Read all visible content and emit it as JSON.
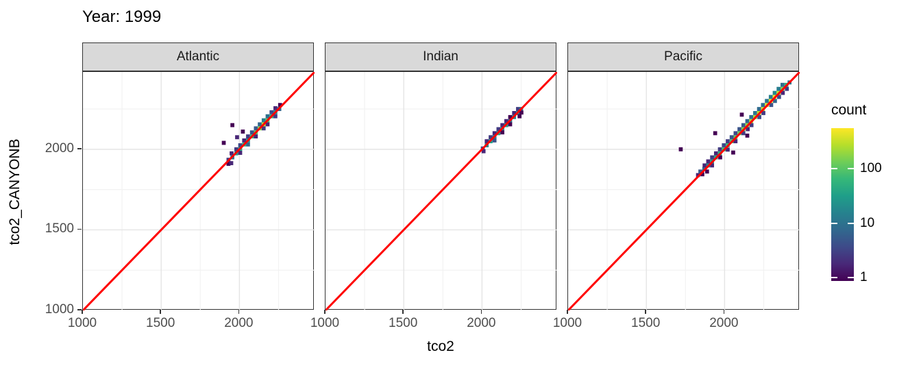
{
  "title": "Year: 1999",
  "x_axis": {
    "label": "tco2",
    "tick_labels": [
      "1000",
      "1500",
      "2000"
    ],
    "tick_values": [
      1000,
      1500,
      2000
    ],
    "minor_gridlines": [
      1250,
      1750,
      2250
    ],
    "major_gridlines": [
      1500,
      2000
    ],
    "domain": [
      1000,
      2480
    ]
  },
  "y_axis": {
    "label": "tco2_CANYONB",
    "tick_labels": [
      "1000",
      "1500",
      "2000"
    ],
    "tick_values": [
      1000,
      1500,
      2000
    ],
    "minor_gridlines": [
      1250,
      1750,
      2250
    ],
    "major_gridlines": [
      1500,
      2000
    ],
    "domain": [
      1000,
      2480
    ]
  },
  "legend": {
    "title": "count",
    "tick_labels": [
      "100",
      "10",
      "1"
    ],
    "tick_values": [
      100,
      10,
      1
    ],
    "scale": "log10",
    "range_min": 0.87,
    "range_max": 560
  },
  "colors": {
    "identity_line": "#ff0000",
    "strip_bg": "#d9d9d9",
    "panel_border": "#333333",
    "grid_major": "#e4e4e4",
    "grid_minor": "#f2f2f2",
    "tick_text": "#4d4d4d",
    "text": "#000000",
    "viridis": [
      "#440154",
      "#482878",
      "#3e4a89",
      "#31688e",
      "#26828e",
      "#1f9e89",
      "#35b779",
      "#6ece58",
      "#b5de2b",
      "#fde725"
    ]
  },
  "chart_data": {
    "type": "heatmap",
    "subtype": "faceted geom_bin2d (2D binned counts) with y=x reference line",
    "title": "Year: 1999",
    "xlabel": "tco2",
    "ylabel": "tco2_CANYONB",
    "axis_range": [
      1000,
      2480
    ],
    "bin_width": 25,
    "count_scale": "log10",
    "legend_title": "count",
    "identity_line": {
      "color": "#ff0000",
      "from": 1000,
      "to": 2480
    },
    "facets": [
      {
        "name": "Atlantic",
        "bins": [
          [
            1930,
            1935,
            3
          ],
          [
            1930,
            1910,
            1
          ],
          [
            1948,
            1914,
            2
          ],
          [
            1955,
            1950,
            12
          ],
          [
            1950,
            1975,
            2
          ],
          [
            1980,
            1975,
            30
          ],
          [
            1980,
            2000,
            3
          ],
          [
            2005,
            2000,
            45
          ],
          [
            2005,
            2025,
            4
          ],
          [
            2005,
            1978,
            2
          ],
          [
            2030,
            2030,
            60
          ],
          [
            2030,
            2055,
            2
          ],
          [
            2055,
            2055,
            25
          ],
          [
            2055,
            2080,
            3
          ],
          [
            2055,
            2030,
            8
          ],
          [
            2080,
            2080,
            70
          ],
          [
            2080,
            2105,
            5
          ],
          [
            2105,
            2105,
            110
          ],
          [
            2105,
            2130,
            6
          ],
          [
            2105,
            2080,
            2
          ],
          [
            2130,
            2130,
            180
          ],
          [
            2130,
            2155,
            8
          ],
          [
            2155,
            2155,
            320
          ],
          [
            2155,
            2180,
            15
          ],
          [
            2155,
            2130,
            3
          ],
          [
            2180,
            2180,
            120
          ],
          [
            2180,
            2205,
            10
          ],
          [
            2180,
            2155,
            2
          ],
          [
            2205,
            2205,
            60
          ],
          [
            2205,
            2230,
            4
          ],
          [
            2230,
            2230,
            25
          ],
          [
            2230,
            2255,
            2
          ],
          [
            2230,
            2205,
            3
          ],
          [
            2255,
            2250,
            8
          ],
          [
            2260,
            2275,
            1
          ],
          [
            1955,
            2150,
            1
          ],
          [
            1900,
            2040,
            1
          ],
          [
            2022,
            2110,
            1
          ],
          [
            1985,
            2075,
            2
          ]
        ]
      },
      {
        "name": "Indian",
        "bins": [
          [
            2005,
            2005,
            4
          ],
          [
            2010,
            1988,
            2
          ],
          [
            2030,
            2025,
            20
          ],
          [
            2030,
            2050,
            2
          ],
          [
            2055,
            2050,
            35
          ],
          [
            2055,
            2075,
            3
          ],
          [
            2080,
            2075,
            15
          ],
          [
            2080,
            2100,
            2
          ],
          [
            2080,
            2055,
            5
          ],
          [
            2105,
            2100,
            40
          ],
          [
            2105,
            2125,
            3
          ],
          [
            2130,
            2125,
            25
          ],
          [
            2130,
            2150,
            2
          ],
          [
            2130,
            2105,
            1
          ],
          [
            2155,
            2150,
            30
          ],
          [
            2155,
            2175,
            2
          ],
          [
            2180,
            2175,
            12
          ],
          [
            2180,
            2200,
            1
          ],
          [
            2180,
            2155,
            1
          ],
          [
            2205,
            2200,
            20
          ],
          [
            2205,
            2225,
            2
          ],
          [
            2230,
            2225,
            25
          ],
          [
            2230,
            2250,
            3
          ],
          [
            2250,
            2250,
            10
          ],
          [
            2252,
            2228,
            1
          ],
          [
            2240,
            2205,
            1
          ]
        ]
      },
      {
        "name": "Pacific",
        "bins": [
          [
            1830,
            1840,
            2
          ],
          [
            1845,
            1862,
            6
          ],
          [
            1858,
            1845,
            1
          ],
          [
            1870,
            1878,
            10
          ],
          [
            1872,
            1900,
            2
          ],
          [
            1888,
            1862,
            1
          ],
          [
            1895,
            1900,
            20
          ],
          [
            1895,
            1925,
            2
          ],
          [
            1920,
            1925,
            30
          ],
          [
            1920,
            1950,
            3
          ],
          [
            1920,
            1900,
            2
          ],
          [
            1945,
            1950,
            45
          ],
          [
            1945,
            1975,
            2
          ],
          [
            1970,
            1975,
            60
          ],
          [
            1970,
            2000,
            3
          ],
          [
            1972,
            1950,
            1
          ],
          [
            1995,
            2000,
            80
          ],
          [
            1995,
            2025,
            4
          ],
          [
            2020,
            2025,
            70
          ],
          [
            2020,
            2050,
            3
          ],
          [
            2020,
            1998,
            2
          ],
          [
            2045,
            2050,
            90
          ],
          [
            2045,
            2075,
            5
          ],
          [
            2055,
            1980,
            1
          ],
          [
            2070,
            2075,
            110
          ],
          [
            2070,
            2100,
            4
          ],
          [
            2070,
            2050,
            2
          ],
          [
            2095,
            2100,
            130
          ],
          [
            2095,
            2125,
            5
          ],
          [
            2120,
            2125,
            160
          ],
          [
            2120,
            2150,
            6
          ],
          [
            2120,
            2100,
            3
          ],
          [
            2145,
            2150,
            200
          ],
          [
            2145,
            2175,
            8
          ],
          [
            2148,
            2125,
            2
          ],
          [
            2170,
            2175,
            260
          ],
          [
            2170,
            2200,
            10
          ],
          [
            2172,
            2150,
            3
          ],
          [
            2195,
            2200,
            230
          ],
          [
            2195,
            2225,
            12
          ],
          [
            2220,
            2225,
            280
          ],
          [
            2220,
            2250,
            9
          ],
          [
            2222,
            2200,
            4
          ],
          [
            2245,
            2250,
            330
          ],
          [
            2245,
            2275,
            10
          ],
          [
            2248,
            2225,
            3
          ],
          [
            2270,
            2275,
            380
          ],
          [
            2270,
            2300,
            12
          ],
          [
            2295,
            2300,
            430
          ],
          [
            2295,
            2325,
            15
          ],
          [
            2298,
            2275,
            5
          ],
          [
            2320,
            2325,
            500
          ],
          [
            2320,
            2350,
            20
          ],
          [
            2322,
            2300,
            8
          ],
          [
            2345,
            2350,
            300
          ],
          [
            2345,
            2375,
            15
          ],
          [
            2348,
            2325,
            4
          ],
          [
            2370,
            2375,
            150
          ],
          [
            2370,
            2400,
            10
          ],
          [
            2372,
            2350,
            2
          ],
          [
            2395,
            2400,
            60
          ],
          [
            2398,
            2375,
            3
          ],
          [
            2415,
            2415,
            12
          ],
          [
            1720,
            2000,
            1
          ],
          [
            2110,
            2215,
            1
          ],
          [
            1940,
            2100,
            1
          ],
          [
            2145,
            2085,
            1
          ]
        ]
      }
    ]
  }
}
